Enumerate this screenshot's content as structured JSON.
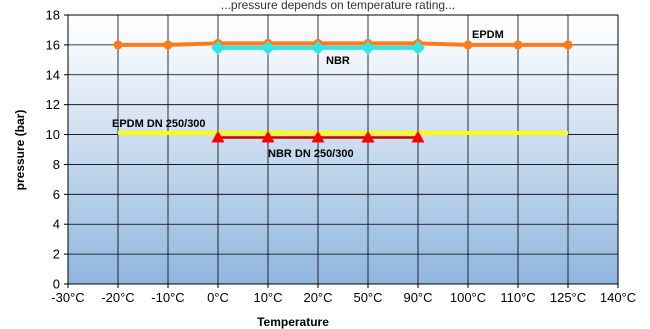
{
  "chart_data": {
    "type": "line",
    "title": "...pressure depends on temperature rating...",
    "xlabel": "Temperature",
    "ylabel": "pressure (bar)",
    "categories": [
      "-30°C",
      "-20°C",
      "-10°C",
      "0°C",
      "10°C",
      "20°C",
      "50°C",
      "90°C",
      "100°C",
      "110°C",
      "125°C",
      "140°C"
    ],
    "ylim": [
      0,
      18
    ],
    "yticks": [
      "0",
      "2",
      "4",
      "6",
      "8",
      "10",
      "12",
      "14",
      "16",
      "18"
    ],
    "grid": true,
    "series": [
      {
        "name": "EPDM",
        "color": "#ff7a1a",
        "marker": "circle",
        "values": [
          null,
          16,
          16,
          16.1,
          16.1,
          16.1,
          16.1,
          16.1,
          16,
          16,
          16,
          null
        ]
      },
      {
        "name": "NBR",
        "color": "#33e6e6",
        "marker": "diamond",
        "values": [
          null,
          null,
          null,
          15.8,
          15.8,
          15.8,
          15.8,
          15.8,
          null,
          null,
          null,
          null
        ]
      },
      {
        "name": "EPDM DN 250/300",
        "color": "#ffff00",
        "marker": "none",
        "values": [
          null,
          10.1,
          10.1,
          10.1,
          10.1,
          10.1,
          10.1,
          10.1,
          10.1,
          10.1,
          10.1,
          null
        ]
      },
      {
        "name": "NBR DN 250/300",
        "color": "#cc0000",
        "marker_color": "#ff0000",
        "marker": "triangle",
        "values": [
          null,
          null,
          null,
          9.8,
          9.8,
          9.8,
          9.8,
          9.8,
          null,
          null,
          null,
          null
        ]
      }
    ]
  }
}
